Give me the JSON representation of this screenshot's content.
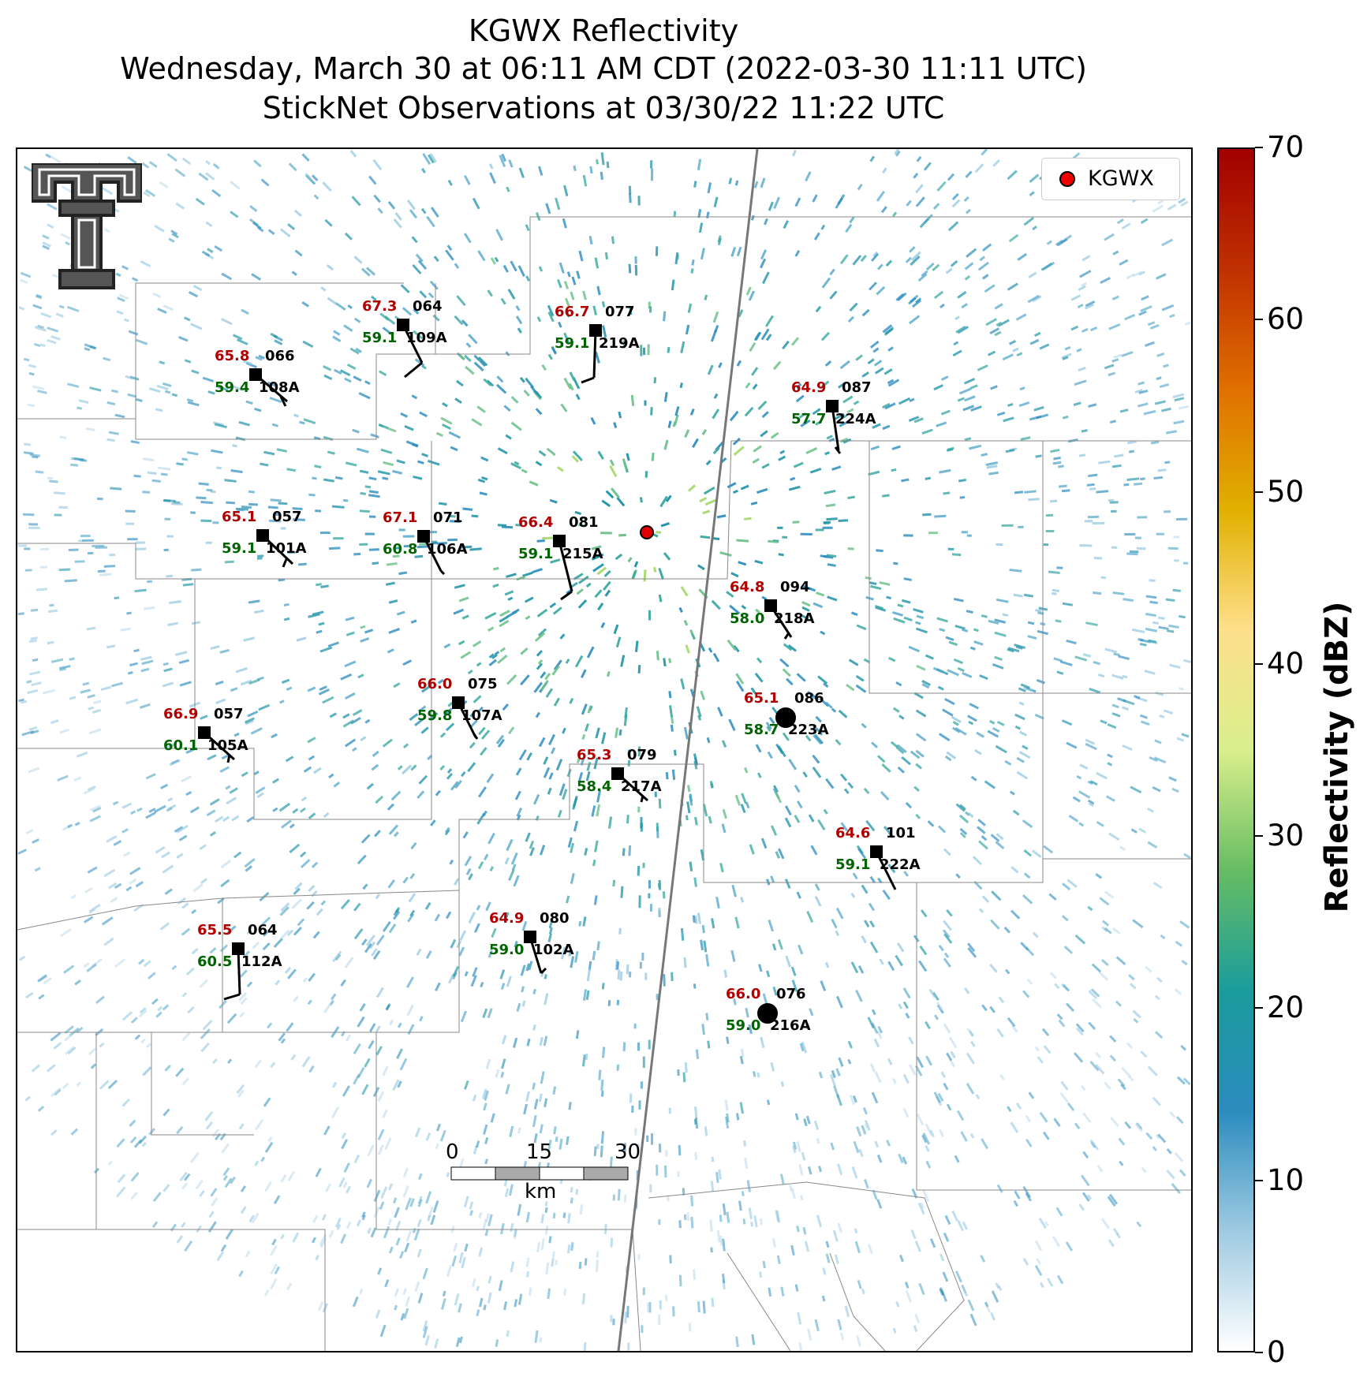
{
  "title": {
    "line1": "KGWX Reflectivity",
    "line2": "Wednesday, March 30 at 06:11 AM CDT (2022-03-30 11:11 UTC)",
    "line3": "StickNet Observations at 03/30/22 11:22 UTC"
  },
  "legend": {
    "label": "KGWX",
    "marker_color": "#e00000"
  },
  "colorbar": {
    "title": "Reflectivity (dBZ)",
    "ticks": [
      "0",
      "10",
      "20",
      "30",
      "40",
      "50",
      "60",
      "70"
    ],
    "min": 0,
    "max": 70,
    "colors": [
      "#ffffff",
      "#9ecae1",
      "#2b8cbe",
      "#1a9c9c",
      "#66bd63",
      "#d9ef8b",
      "#fee08b",
      "#e0b000",
      "#e07000",
      "#c03000",
      "#a00000"
    ]
  },
  "scale_bar": {
    "labels": [
      "0",
      "15",
      "30"
    ],
    "unit": "km"
  },
  "stations": [
    {
      "id": "109A",
      "temp": "67.3",
      "dew": "59.1",
      "dir": "064"
    },
    {
      "id": "219A",
      "temp": "66.7",
      "dew": "59.1",
      "dir": "077"
    },
    {
      "id": "108A",
      "temp": "65.8",
      "dew": "59.4",
      "dir": "066"
    },
    {
      "id": "224A",
      "temp": "64.9",
      "dew": "57.7",
      "dir": "087"
    },
    {
      "id": "101A",
      "temp": "65.1",
      "dew": "59.1",
      "dir": "057"
    },
    {
      "id": "106A",
      "temp": "67.1",
      "dew": "60.8",
      "dir": "071"
    },
    {
      "id": "215A",
      "temp": "66.4",
      "dew": "59.1",
      "dir": "081"
    },
    {
      "id": "218A",
      "temp": "64.8",
      "dew": "58.0",
      "dir": "094"
    },
    {
      "id": "107A",
      "temp": "66.0",
      "dew": "59.8",
      "dir": "075"
    },
    {
      "id": "223A",
      "temp": "65.1",
      "dew": "58.7",
      "dir": "086"
    },
    {
      "id": "105A",
      "temp": "66.9",
      "dew": "60.1",
      "dir": "057"
    },
    {
      "id": "217A",
      "temp": "65.3",
      "dew": "58.4",
      "dir": "079"
    },
    {
      "id": "222A",
      "temp": "64.6",
      "dew": "59.1",
      "dir": "101"
    },
    {
      "id": "102A",
      "temp": "64.9",
      "dew": "59.0",
      "dir": "080"
    },
    {
      "id": "112A",
      "temp": "65.5",
      "dew": "60.5",
      "dir": "064"
    },
    {
      "id": "216A",
      "temp": "66.0",
      "dew": "59.0",
      "dir": "076"
    }
  ]
}
